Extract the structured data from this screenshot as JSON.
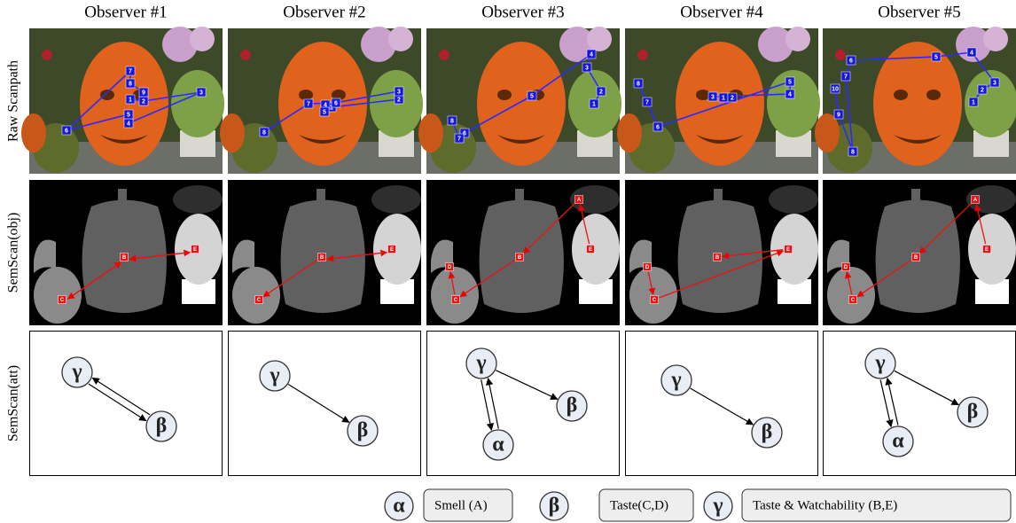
{
  "row_labels": [
    "Raw Scanpath",
    "SemScan(obj)",
    "SemScan(att)"
  ],
  "observers": [
    {
      "title": "Observer #1",
      "fixations": [
        "1",
        "2",
        "3",
        "4",
        "5",
        "6",
        "7",
        "8",
        "9"
      ],
      "objects": [
        "B",
        "E",
        "C"
      ],
      "attributes": [
        "γ",
        "β"
      ]
    },
    {
      "title": "Observer #2",
      "fixations": [
        "1",
        "2",
        "3",
        "4",
        "5",
        "6",
        "7",
        "8"
      ],
      "objects": [
        "B",
        "E",
        "C"
      ],
      "attributes": [
        "γ",
        "β"
      ]
    },
    {
      "title": "Observer #3",
      "fixations": [
        "1",
        "2",
        "3",
        "4",
        "5",
        "6",
        "7",
        "8"
      ],
      "objects": [
        "A",
        "E",
        "B",
        "C",
        "D"
      ],
      "attributes": [
        "γ",
        "β",
        "α"
      ]
    },
    {
      "title": "Observer #4",
      "fixations": [
        "1",
        "2",
        "3",
        "4",
        "5",
        "6",
        "7",
        "8"
      ],
      "objects": [
        "B",
        "E",
        "C",
        "D"
      ],
      "attributes": [
        "γ",
        "β"
      ]
    },
    {
      "title": "Observer #5",
      "fixations": [
        "1",
        "2",
        "3",
        "4",
        "5",
        "6",
        "7",
        "8",
        "9",
        "10"
      ],
      "objects": [
        "A",
        "E",
        "B",
        "C",
        "D"
      ],
      "attributes": [
        "γ",
        "β",
        "α"
      ]
    }
  ],
  "legend": [
    {
      "symbol": "α",
      "text": "Smell (A)"
    },
    {
      "symbol": "β",
      "text": "Taste(C,D)"
    },
    {
      "symbol": "γ",
      "text": "Taste & Watchability (B,E)"
    }
  ]
}
